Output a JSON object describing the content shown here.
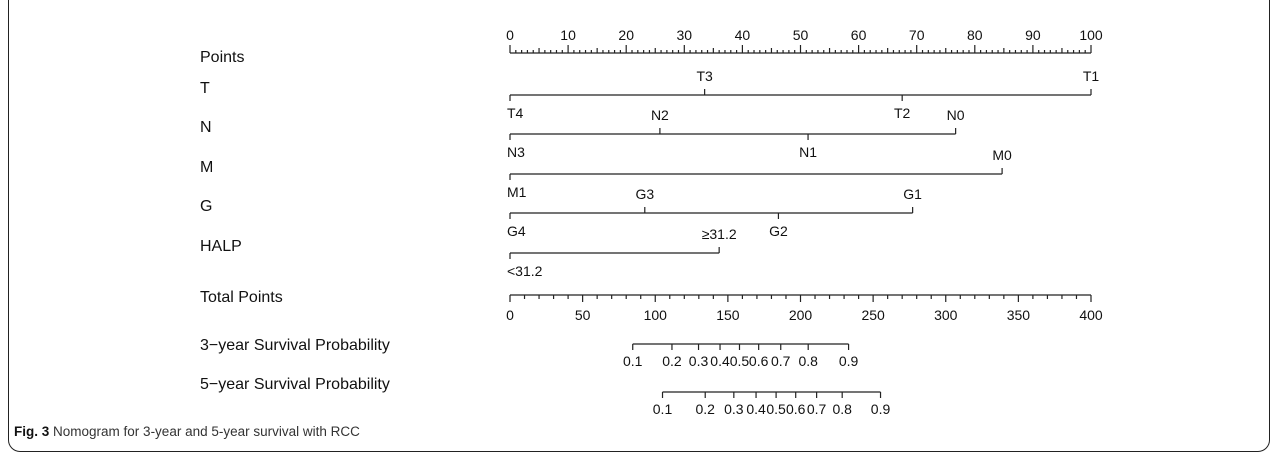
{
  "chart_data": {
    "type": "nomogram",
    "caption_label": "Fig. 3",
    "caption_text": "Nomogram for 3-year and 5-year survival with RCC",
    "points_axis": {
      "label": "Points",
      "range": [
        0,
        100
      ],
      "ticks": [
        "0",
        "10",
        "20",
        "30",
        "40",
        "50",
        "60",
        "70",
        "80",
        "90",
        "100"
      ],
      "minor_step": 1
    },
    "variables": [
      {
        "name": "T",
        "levels": [
          {
            "label": "T4",
            "points": 0
          },
          {
            "label": "T3",
            "points": 33.5
          },
          {
            "label": "T2",
            "points": 67.5
          },
          {
            "label": "T1",
            "points": 100
          }
        ]
      },
      {
        "name": "N",
        "levels": [
          {
            "label": "N3",
            "points": 0
          },
          {
            "label": "N2",
            "points": 25.8
          },
          {
            "label": "N1",
            "points": 51.3
          },
          {
            "label": "N0",
            "points": 76.7
          }
        ]
      },
      {
        "name": "M",
        "levels": [
          {
            "label": "M1",
            "points": 0
          },
          {
            "label": "M0",
            "points": 84.7
          }
        ]
      },
      {
        "name": "G",
        "levels": [
          {
            "label": "G4",
            "points": 0
          },
          {
            "label": "G3",
            "points": 23.2
          },
          {
            "label": "G2",
            "points": 46.2
          },
          {
            "label": "G1",
            "points": 69.3
          }
        ]
      },
      {
        "name": "HALP",
        "levels": [
          {
            "label": "<31.2",
            "points": 0
          },
          {
            "label": "≥31.2",
            "points": 36
          }
        ]
      }
    ],
    "total_points_axis": {
      "label": "Total Points",
      "range": [
        0,
        400
      ],
      "ticks": [
        "0",
        "50",
        "100",
        "150",
        "200",
        "250",
        "300",
        "350",
        "400"
      ],
      "minor_step": 10
    },
    "probability_axes": [
      {
        "label": "3−year Survival Probability",
        "ticks": [
          {
            "label": "0.1",
            "total": 84.5
          },
          {
            "label": "0.2",
            "total": 111.5
          },
          {
            "label": "0.3",
            "total": 129.8
          },
          {
            "label": "0.4",
            "total": 144.6
          },
          {
            "label": "0.5",
            "total": 158
          },
          {
            "label": "0.6",
            "total": 171.2
          },
          {
            "label": "0.7",
            "total": 186.4
          },
          {
            "label": "0.8",
            "total": 205.3
          },
          {
            "label": "0.9",
            "total": 233.1
          }
        ]
      },
      {
        "label": "5−year Survival Probability",
        "ticks": [
          {
            "label": "0.1",
            "total": 105
          },
          {
            "label": "0.2",
            "total": 134.4
          },
          {
            "label": "0.3",
            "total": 154.1
          },
          {
            "label": "0.4",
            "total": 169.4
          },
          {
            "label": "0.5",
            "total": 183.2
          },
          {
            "label": "0.6",
            "total": 196.7
          },
          {
            "label": "0.7",
            "total": 211.1
          },
          {
            "label": "0.8",
            "total": 228.7
          },
          {
            "label": "0.9",
            "total": 255.1
          }
        ]
      }
    ]
  }
}
